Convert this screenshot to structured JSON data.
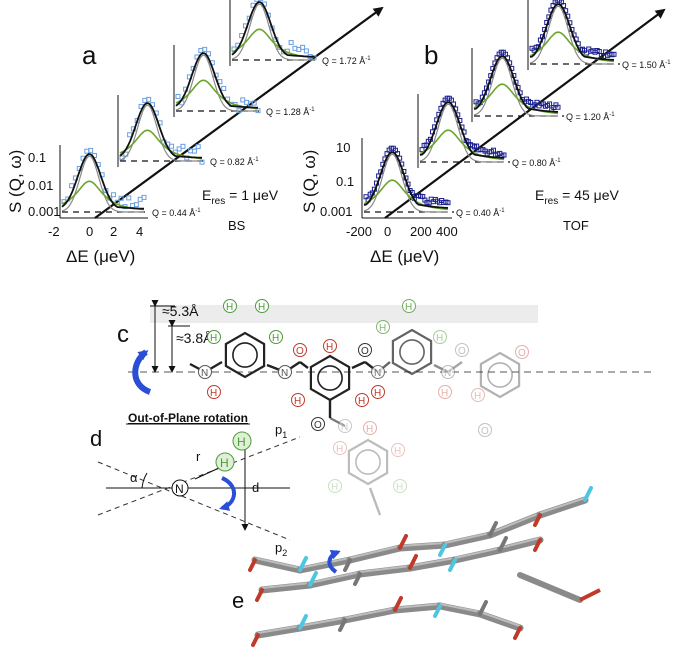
{
  "panels": {
    "a": {
      "letter": "a",
      "ylabel": "S (Q, ω)",
      "xlabel": "ΔE (μeV)",
      "xticks": [
        "-2",
        "0",
        "2",
        "4"
      ],
      "yticks": [
        "0.1",
        "0.01",
        "0.001"
      ],
      "eres_prefix": "E",
      "eres_sub": "res",
      "eres_value": " = 1 μeV",
      "technique": "BS",
      "q_labels": [
        "Q = 0.44 Å",
        "Q = 0.82 Å",
        "Q = 1.28 Å",
        "Q = 1.72 Å"
      ],
      "q_sup": "-1"
    },
    "b": {
      "letter": "b",
      "ylabel": "S (Q, ω)",
      "xlabel": "ΔE (μeV)",
      "xticks": [
        "-200",
        "0",
        "200",
        "400"
      ],
      "yticks": [
        "10",
        "0.1",
        "0.001"
      ],
      "eres_prefix": "E",
      "eres_sub": "res",
      "eres_value": " = 45 μeV",
      "technique": "TOF",
      "q_labels": [
        "Q = 0.40 Å",
        "Q = 0.80 Å",
        "Q = 1.20 Å",
        "Q = 1.50 Å"
      ],
      "q_sup": "-1"
    },
    "c": {
      "letter": "c",
      "dist_top": "≈5.3Å",
      "dist_mid": "≈3.8Å",
      "atoms": {
        "H": "H",
        "N": "N",
        "O": "O"
      }
    },
    "d": {
      "letter": "d",
      "title": "Out-of-Plane rotation",
      "alpha": "α",
      "r": "r",
      "d": "d",
      "N": "N",
      "H": "H",
      "p1": "p",
      "p1_sub": "1",
      "p2": "p",
      "p2_sub": "2"
    },
    "e": {
      "letter": "e"
    }
  },
  "colors": {
    "data_a": "#6a9fe0",
    "data_b": "#1b1f8f",
    "fit_total": "#111111",
    "fit_lorentz": "#6aa62c",
    "fit_gauss": "#8a8a8a",
    "rotation_arrow": "#2a4fd6",
    "oxygen": "#c0392b",
    "hydrogen": "#4e9a3a",
    "nitrogen_e": "#4fc6e0",
    "bond": "#222222"
  }
}
